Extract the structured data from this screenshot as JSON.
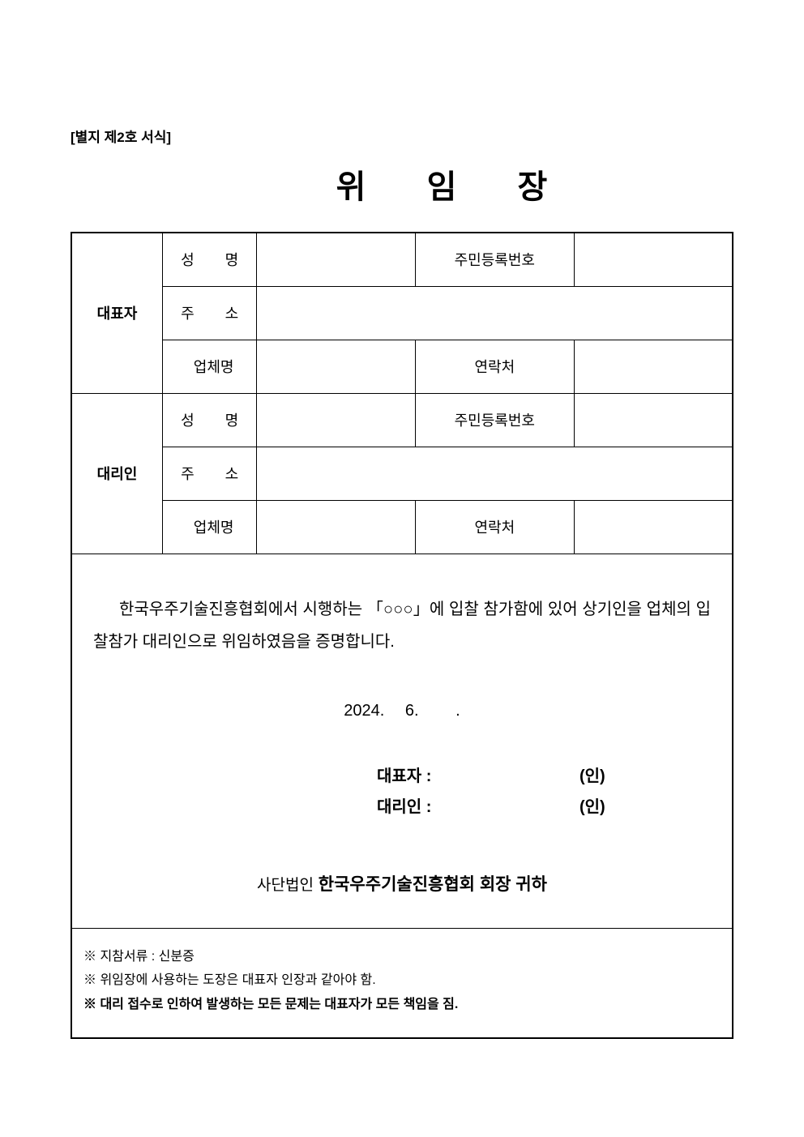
{
  "form_label": "[별지 제2호 서식]",
  "title": "위 임 장",
  "section1": {
    "header": "대표자",
    "rows": [
      {
        "label": "성　명",
        "midlabel": "주민등록번호"
      },
      {
        "label": "주　소"
      },
      {
        "label": "업체명",
        "label_tight": true,
        "midlabel": "연락처"
      }
    ]
  },
  "section2": {
    "header": "대리인",
    "rows": [
      {
        "label": "성　명",
        "midlabel": "주민등록번호"
      },
      {
        "label": "주　소"
      },
      {
        "label": "업체명",
        "label_tight": true,
        "midlabel": "연락처"
      }
    ]
  },
  "body_text": "한국우주기술진흥협회에서 시행하는 「○○○」에 입찰 참가함에 있어 상기인을 업체의 입찰참가 대리인으로 위임하였음을 증명합니다.",
  "date": "2024.　 6.　　 .",
  "signatures": {
    "rep_label": "대표자 :",
    "agent_label": "대리인 :",
    "seal": "(인)"
  },
  "addressee_prefix": "사단법인",
  "addressee_main": "한국우주기술진흥협회 회장 귀하",
  "notes": [
    {
      "text": "※  지참서류 : 신분증",
      "bold": false
    },
    {
      "text": "※  위임장에 사용하는 도장은 대표자 인장과 같아야 함.",
      "bold": false
    },
    {
      "text": "※  대리 접수로 인하여 발생하는 모든 문제는 대표자가 모든 책임을 짐.",
      "bold": true
    }
  ]
}
